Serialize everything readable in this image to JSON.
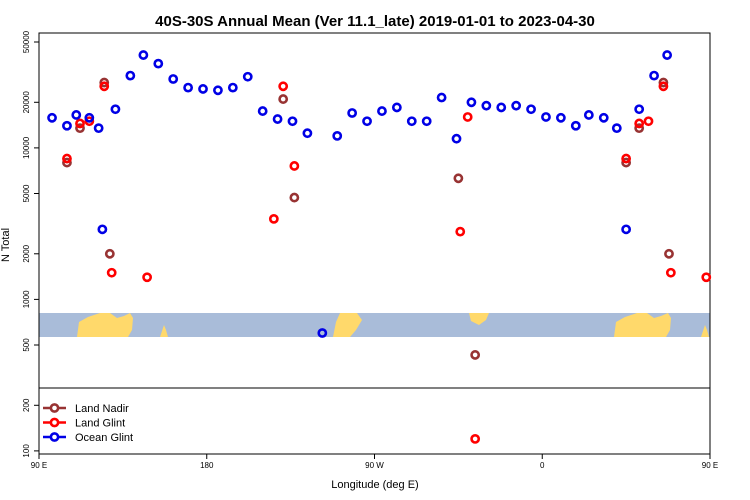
{
  "chart_data": {
    "type": "scatter",
    "title": "40S-30S Annual Mean (Ver 11.1_late)   2019-01-01 to 2023-04-30",
    "xlabel": "Longitude (deg E)",
    "ylabel": "N Total",
    "x_scale": "longitude",
    "y_scale": "log",
    "xlim": [
      90,
      450
    ],
    "ylim": [
      90,
      50000
    ],
    "x_ticks": [
      {
        "value": 90,
        "label": "90 E"
      },
      {
        "value": 180,
        "label": "180"
      },
      {
        "value": 270,
        "label": "90 W"
      },
      {
        "value": 360,
        "label": "0"
      },
      {
        "value": 450,
        "label": "90 E"
      },
      {
        "value": 540,
        "label": "180"
      }
    ],
    "y_ticks": [
      100,
      200,
      500,
      1000,
      2000,
      5000,
      10000,
      20000,
      50000
    ],
    "y_tick_labels": [
      "100",
      "200",
      "500",
      "1000",
      "2000",
      "5000",
      "10000",
      "20000",
      "50000"
    ],
    "legend_position": "bottom-left",
    "map_strip": {
      "sea_color": "#a9bcd9",
      "land_color": "#ffd96b"
    },
    "colors": {
      "Land Nadir": "#983333",
      "Land Glint": "#ff0000",
      "Ocean Glint": "#0000e6"
    },
    "series": [
      {
        "name": "Land Nadir",
        "color": "#983333",
        "points": [
          [
            105,
            8000
          ],
          [
            112,
            13500
          ],
          [
            125,
            27000
          ],
          [
            128,
            2000
          ],
          [
            221,
            21000
          ],
          [
            227,
            4700
          ],
          [
            315,
            6300
          ],
          [
            324,
            430
          ],
          [
            405,
            8000
          ],
          [
            412,
            13500
          ],
          [
            425,
            27000
          ],
          [
            428,
            2000
          ]
        ]
      },
      {
        "name": "Land Glint",
        "color": "#ff0000",
        "points": [
          [
            105,
            8500
          ],
          [
            112,
            14500
          ],
          [
            117,
            15000
          ],
          [
            125,
            25500
          ],
          [
            129,
            1500
          ],
          [
            148,
            1400
          ],
          [
            216,
            3400
          ],
          [
            221,
            25500
          ],
          [
            227,
            7600
          ],
          [
            316,
            2800
          ],
          [
            320,
            16000
          ],
          [
            324,
            120
          ],
          [
            405,
            8500
          ],
          [
            412,
            14500
          ],
          [
            417,
            15000
          ],
          [
            425,
            25500
          ],
          [
            429,
            1500
          ],
          [
            448,
            1400
          ]
        ]
      },
      {
        "name": "Ocean Glint",
        "color": "#0000e6",
        "points": [
          [
            97,
            15800
          ],
          [
            105,
            14000
          ],
          [
            110,
            16500
          ],
          [
            117,
            15800
          ],
          [
            122,
            13500
          ],
          [
            124,
            2900
          ],
          [
            131,
            18000
          ],
          [
            139,
            30000
          ],
          [
            146,
            41000
          ],
          [
            154,
            36000
          ],
          [
            162,
            28500
          ],
          [
            170,
            25000
          ],
          [
            178,
            24500
          ],
          [
            186,
            24000
          ],
          [
            194,
            25000
          ],
          [
            202,
            29500
          ],
          [
            210,
            17500
          ],
          [
            218,
            15500
          ],
          [
            226,
            15000
          ],
          [
            234,
            12500
          ],
          [
            242,
            600
          ],
          [
            250,
            12000
          ],
          [
            258,
            17000
          ],
          [
            266,
            15000
          ],
          [
            274,
            17500
          ],
          [
            282,
            18500
          ],
          [
            290,
            15000
          ],
          [
            298,
            15000
          ],
          [
            306,
            21500
          ],
          [
            314,
            11500
          ],
          [
            322,
            20000
          ],
          [
            330,
            19000
          ],
          [
            338,
            18500
          ],
          [
            346,
            19000
          ],
          [
            354,
            18000
          ],
          [
            362,
            16000
          ],
          [
            370,
            15800
          ],
          [
            378,
            14000
          ],
          [
            385,
            16500
          ],
          [
            393,
            15800
          ],
          [
            400,
            13500
          ],
          [
            405,
            2900
          ],
          [
            412,
            18000
          ],
          [
            420,
            30000
          ],
          [
            427,
            41000
          ]
        ]
      }
    ]
  }
}
